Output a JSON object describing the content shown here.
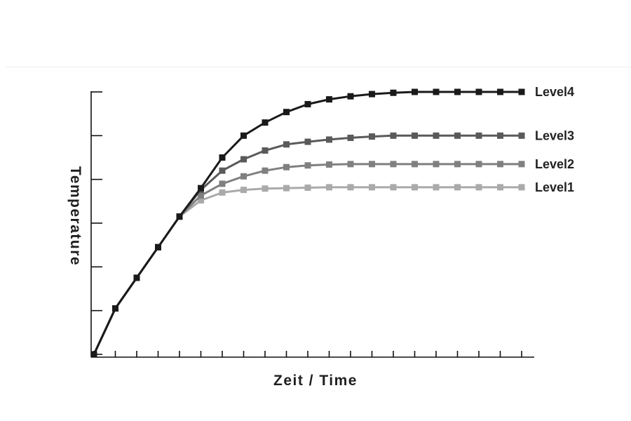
{
  "chart_data": {
    "type": "line",
    "title": "",
    "xlabel": "Zeit / Time",
    "ylabel": "Temperature",
    "xlim": [
      0,
      20
    ],
    "ylim": [
      0,
      6
    ],
    "x_tick_count": 21,
    "y_tick_count": 7,
    "grid": false,
    "tick_labels": false,
    "legend": "end-of-line labels at right",
    "x": [
      0,
      1,
      2,
      3,
      4,
      5,
      6,
      7,
      8,
      9,
      10,
      11,
      12,
      13,
      14,
      15,
      16,
      17,
      18,
      19,
      20
    ],
    "series": [
      {
        "name": "Level1",
        "color": "#aaaaaa",
        "values": [
          0.0,
          1.05,
          1.75,
          2.45,
          3.15,
          3.52,
          3.7,
          3.76,
          3.79,
          3.8,
          3.81,
          3.82,
          3.82,
          3.82,
          3.82,
          3.82,
          3.82,
          3.82,
          3.82,
          3.82,
          3.82
        ]
      },
      {
        "name": "Level2",
        "color": "#808080",
        "values": [
          0.0,
          1.05,
          1.75,
          2.45,
          3.15,
          3.63,
          3.9,
          4.07,
          4.2,
          4.28,
          4.32,
          4.34,
          4.35,
          4.35,
          4.35,
          4.35,
          4.35,
          4.35,
          4.35,
          4.35,
          4.35
        ]
      },
      {
        "name": "Level3",
        "color": "#5a5a5a",
        "values": [
          0.0,
          1.05,
          1.75,
          2.45,
          3.15,
          3.76,
          4.2,
          4.46,
          4.66,
          4.8,
          4.86,
          4.91,
          4.95,
          4.98,
          5.0,
          5.0,
          5.0,
          5.0,
          5.0,
          5.0,
          5.0
        ]
      },
      {
        "name": "Level4",
        "color": "#1a1a1a",
        "values": [
          0.0,
          1.05,
          1.75,
          2.45,
          3.15,
          3.8,
          4.5,
          5.0,
          5.3,
          5.54,
          5.72,
          5.83,
          5.9,
          5.95,
          5.98,
          6.0,
          6.0,
          6.0,
          6.0,
          6.0,
          6.0
        ]
      }
    ]
  }
}
